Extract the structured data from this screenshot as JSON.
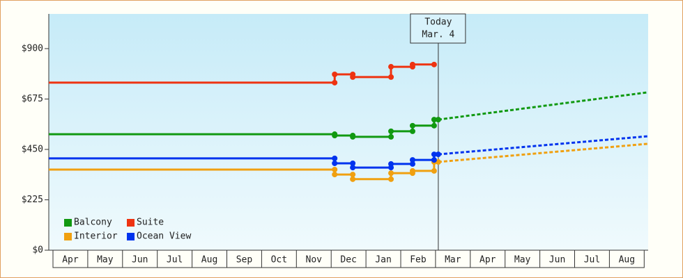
{
  "chart_data": {
    "type": "step-line",
    "categories": [
      "Apr",
      "May",
      "Jun",
      "Jul",
      "Aug",
      "Sep",
      "Oct",
      "Nov",
      "Dec",
      "Jan",
      "Feb",
      "Mar",
      "Apr",
      "May",
      "Jun",
      "Jul",
      "Aug"
    ],
    "xlim": [
      -0.12,
      17.11
    ],
    "ylim": [
      0,
      1055
    ],
    "yticks": [
      {
        "value": 0,
        "label": "$0"
      },
      {
        "value": 225,
        "label": "$225"
      },
      {
        "value": 450,
        "label": "$450"
      },
      {
        "value": 675,
        "label": "$675"
      },
      {
        "value": 900,
        "label": "$900"
      }
    ],
    "today": {
      "x": 11.08,
      "label": [
        "Today",
        "Mar. 4"
      ]
    },
    "legend": "lower left",
    "series": [
      {
        "name": "Balcony",
        "color": "#119911",
        "x": [
          -0.12,
          8.1,
          8.1,
          8.62,
          8.62,
          9.72,
          9.72,
          10.34,
          10.34,
          10.96,
          10.96,
          11.08
        ],
        "values": [
          518,
          518,
          512,
          512,
          506,
          506,
          531,
          531,
          556,
          556,
          583,
          583
        ],
        "forecast": {
          "x": [
            11.08,
            17.11
          ],
          "values": [
            583,
            705
          ]
        }
      },
      {
        "name": "Suite",
        "color": "#ee3311",
        "x": [
          -0.12,
          8.1,
          8.1,
          8.62,
          8.62,
          9.72,
          9.72,
          10.34,
          10.34,
          10.96
        ],
        "values": [
          748,
          748,
          785,
          785,
          773,
          773,
          819,
          819,
          829,
          829
        ]
      },
      {
        "name": "Interior",
        "color": "#f0a010",
        "x": [
          -0.12,
          8.1,
          8.1,
          8.62,
          8.62,
          9.72,
          9.72,
          10.34,
          10.34,
          10.96,
          10.96,
          11.08
        ],
        "values": [
          360,
          360,
          338,
          338,
          317,
          317,
          344,
          344,
          354,
          354,
          394,
          394
        ],
        "forecast": {
          "x": [
            11.08,
            17.11
          ],
          "values": [
            394,
            475
          ]
        }
      },
      {
        "name": "Ocean View",
        "color": "#0033ee",
        "x": [
          -0.12,
          8.1,
          8.1,
          8.62,
          8.62,
          9.72,
          9.72,
          10.34,
          10.34,
          10.96,
          10.96,
          11.08
        ],
        "values": [
          410,
          410,
          388,
          388,
          369,
          369,
          385,
          385,
          403,
          403,
          428,
          428
        ],
        "forecast": {
          "x": [
            11.08,
            17.11
          ],
          "values": [
            428,
            509
          ]
        }
      }
    ]
  }
}
